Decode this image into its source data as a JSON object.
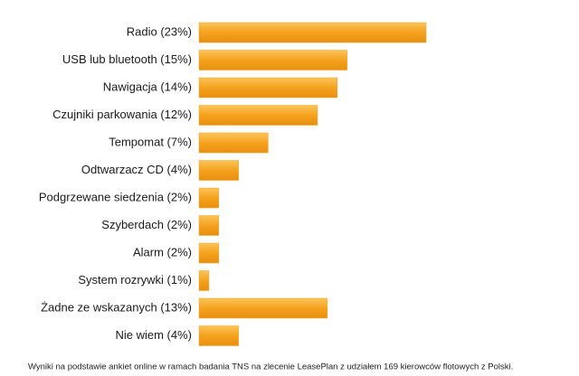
{
  "chart_data": {
    "type": "hbar",
    "categories": [
      "Radio (23%)",
      "USB lub bluetooth (15%)",
      "Nawigacja (14%)",
      "Czujniki parkowania (12%)",
      "Tempomat (7%)",
      "Odtwarzacz CD (4%)",
      "Podgrzewane siedzenia (2%)",
      "Szyberdach (2%)",
      "Alarm (2%)",
      "System rozrywki (1%)",
      "Żadne ze wskazanych (13%)",
      "Nie wiem (4%)"
    ],
    "values": [
      23,
      15,
      14,
      12,
      7,
      4,
      2,
      2,
      2,
      1,
      13,
      4
    ],
    "color": "#f5a623",
    "note": "Wyniki na podstawie ankiet online w ramach badania TNS na zlecenie LeasePlan z udziałem 169 kierowców flotowych z Polski."
  }
}
